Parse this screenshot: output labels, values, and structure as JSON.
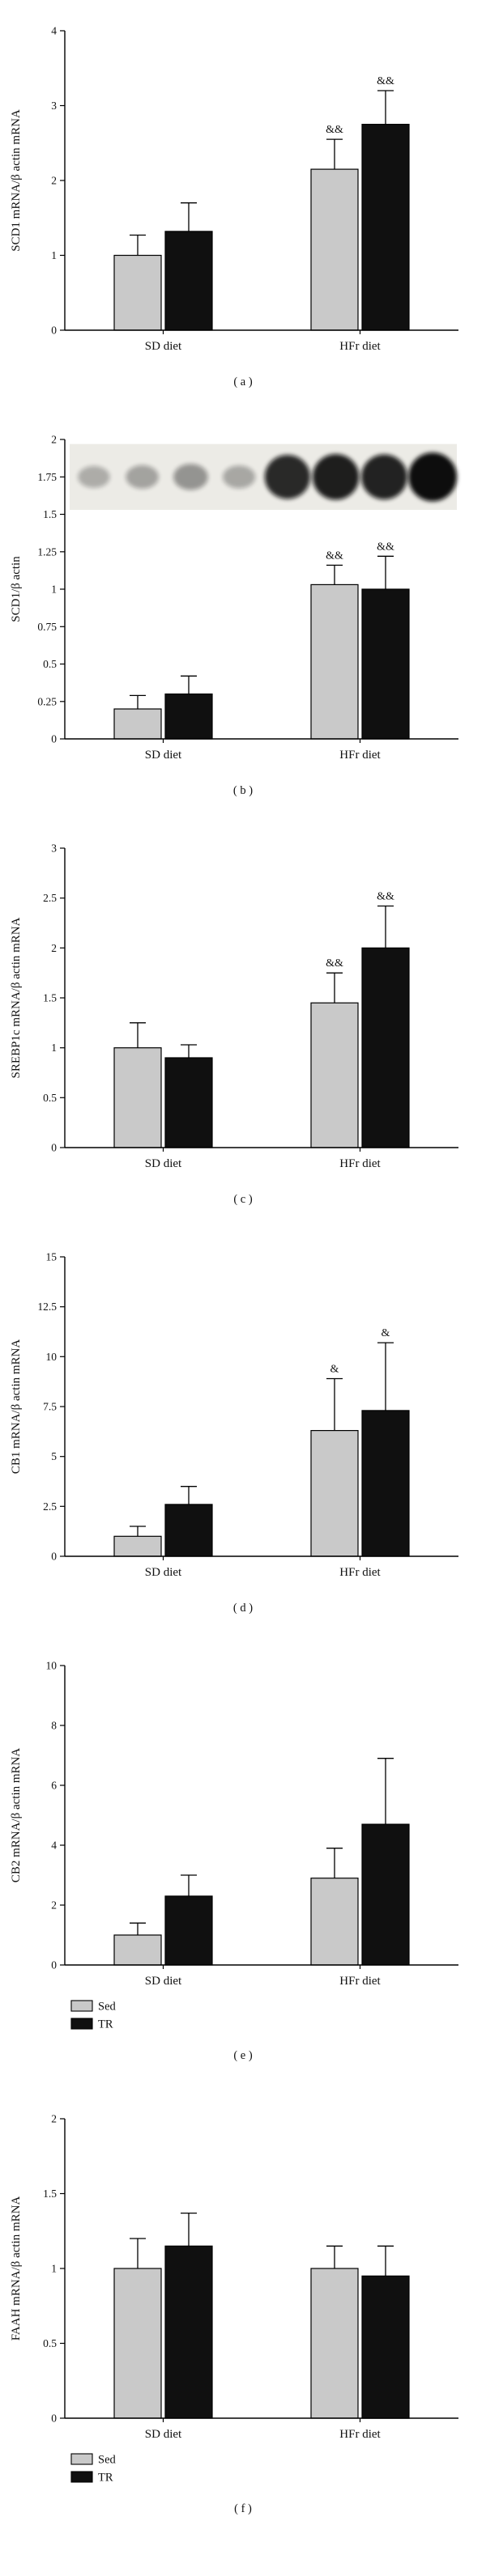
{
  "figure": {
    "bar_colors": {
      "Sed": "#c9c9c9",
      "TR": "#101010"
    },
    "legend": {
      "items": [
        {
          "label": "Sed",
          "color": "#c9c9c9"
        },
        {
          "label": "TR",
          "color": "#101010"
        }
      ],
      "position": "below-plot-left"
    }
  },
  "chart_data": [
    {
      "type": "bar",
      "panel_label": "( a )",
      "ylabel": "SCD1 mRNA/β actin mRNA",
      "xlabel": "",
      "ylim": [
        0,
        4
      ],
      "yticks": [
        0,
        1,
        2,
        3,
        4
      ],
      "ytick_labels": [
        "0",
        "1",
        "2",
        "3",
        "4"
      ],
      "categories": [
        "SD diet",
        "HFr diet"
      ],
      "series": [
        {
          "name": "Sed",
          "color": "#c9c9c9",
          "values": [
            1.0,
            2.15
          ],
          "errors": [
            0.27,
            0.4
          ],
          "sig": [
            "",
            "&&"
          ]
        },
        {
          "name": "TR",
          "color": "#101010",
          "values": [
            1.32,
            2.75
          ],
          "errors": [
            0.38,
            0.45
          ],
          "sig": [
            "",
            "&&"
          ]
        }
      ],
      "legend_visible": false,
      "grid": false
    },
    {
      "type": "bar",
      "panel_label": "( b )",
      "ylabel": "SCD1/β actin",
      "xlabel": "",
      "ylim": [
        0,
        2
      ],
      "yticks": [
        0,
        0.25,
        0.5,
        0.75,
        1,
        1.25,
        1.5,
        1.75,
        2
      ],
      "ytick_labels": [
        "0",
        "0.25",
        "0.5",
        "0.75",
        "1",
        "1.25",
        "1.5",
        "1.75",
        "2"
      ],
      "categories": [
        "SD diet",
        "HFr diet"
      ],
      "series": [
        {
          "name": "Sed",
          "color": "#c9c9c9",
          "values": [
            0.2,
            1.03
          ],
          "errors": [
            0.09,
            0.13
          ],
          "sig": [
            "",
            "&&"
          ]
        },
        {
          "name": "TR",
          "color": "#101010",
          "values": [
            0.3,
            1.0
          ],
          "errors": [
            0.12,
            0.22
          ],
          "sig": [
            "",
            "&&"
          ]
        }
      ],
      "legend_visible": false,
      "grid": false,
      "blot": {
        "description": "western-blot strip inset above bars, 4 faint SD lanes then 4 dark HFr lanes",
        "value_range": [
          1.53,
          1.97
        ],
        "lane_intensities": [
          0.15,
          0.2,
          0.28,
          0.18,
          0.85,
          0.9,
          0.88,
          1.0
        ]
      }
    },
    {
      "type": "bar",
      "panel_label": "( c )",
      "ylabel": "SREBP1c mRNA/β actin mRNA",
      "xlabel": "",
      "ylim": [
        0,
        3
      ],
      "yticks": [
        0,
        0.5,
        1,
        1.5,
        2,
        2.5,
        3
      ],
      "ytick_labels": [
        "0",
        "0.5",
        "1",
        "1.5",
        "2",
        "2.5",
        "3"
      ],
      "categories": [
        "SD diet",
        "HFr diet"
      ],
      "series": [
        {
          "name": "Sed",
          "color": "#c9c9c9",
          "values": [
            1.0,
            1.45
          ],
          "errors": [
            0.25,
            0.3
          ],
          "sig": [
            "",
            "&&"
          ]
        },
        {
          "name": "TR",
          "color": "#101010",
          "values": [
            0.9,
            2.0
          ],
          "errors": [
            0.13,
            0.42
          ],
          "sig": [
            "",
            "&&"
          ]
        }
      ],
      "legend_visible": false,
      "grid": false
    },
    {
      "type": "bar",
      "panel_label": "( d )",
      "ylabel": "CB1 mRNA/β actin mRNA",
      "xlabel": "",
      "ylim": [
        0,
        15
      ],
      "yticks": [
        0,
        2.5,
        5,
        7.5,
        10,
        12.5,
        15
      ],
      "ytick_labels": [
        "0",
        "2.5",
        "5",
        "7.5",
        "10",
        "12.5",
        "15"
      ],
      "categories": [
        "SD diet",
        "HFr diet"
      ],
      "series": [
        {
          "name": "Sed",
          "color": "#c9c9c9",
          "values": [
            1.0,
            6.3
          ],
          "errors": [
            0.5,
            2.6
          ],
          "sig": [
            "",
            "&"
          ]
        },
        {
          "name": "TR",
          "color": "#101010",
          "values": [
            2.6,
            7.3
          ],
          "errors": [
            0.9,
            3.4
          ],
          "sig": [
            "",
            "&"
          ]
        }
      ],
      "legend_visible": false,
      "grid": false
    },
    {
      "type": "bar",
      "panel_label": "( e )",
      "ylabel": "CB2 mRNA/β actin mRNA",
      "xlabel": "",
      "ylim": [
        0,
        10
      ],
      "yticks": [
        0,
        2,
        4,
        6,
        8,
        10
      ],
      "ytick_labels": [
        "0",
        "2",
        "4",
        "6",
        "8",
        "10"
      ],
      "categories": [
        "SD diet",
        "HFr diet"
      ],
      "series": [
        {
          "name": "Sed",
          "color": "#c9c9c9",
          "values": [
            1.0,
            2.9
          ],
          "errors": [
            0.4,
            1.0
          ],
          "sig": [
            "",
            ""
          ]
        },
        {
          "name": "TR",
          "color": "#101010",
          "values": [
            2.3,
            4.7
          ],
          "errors": [
            0.7,
            2.2
          ],
          "sig": [
            "",
            ""
          ]
        }
      ],
      "legend_visible": true,
      "grid": false
    },
    {
      "type": "bar",
      "panel_label": "( f )",
      "ylabel": "FAAH mRNA/β actin mRNA",
      "xlabel": "",
      "ylim": [
        0,
        2
      ],
      "yticks": [
        0,
        0.5,
        1,
        1.5,
        2
      ],
      "ytick_labels": [
        "0",
        "0.5",
        "1",
        "1.5",
        "2"
      ],
      "categories": [
        "SD diet",
        "HFr diet"
      ],
      "series": [
        {
          "name": "Sed",
          "color": "#c9c9c9",
          "values": [
            1.0,
            1.0
          ],
          "errors": [
            0.2,
            0.15
          ],
          "sig": [
            "",
            ""
          ]
        },
        {
          "name": "TR",
          "color": "#101010",
          "values": [
            1.15,
            0.95
          ],
          "errors": [
            0.22,
            0.2
          ],
          "sig": [
            "",
            ""
          ]
        }
      ],
      "legend_visible": true,
      "grid": false
    }
  ]
}
